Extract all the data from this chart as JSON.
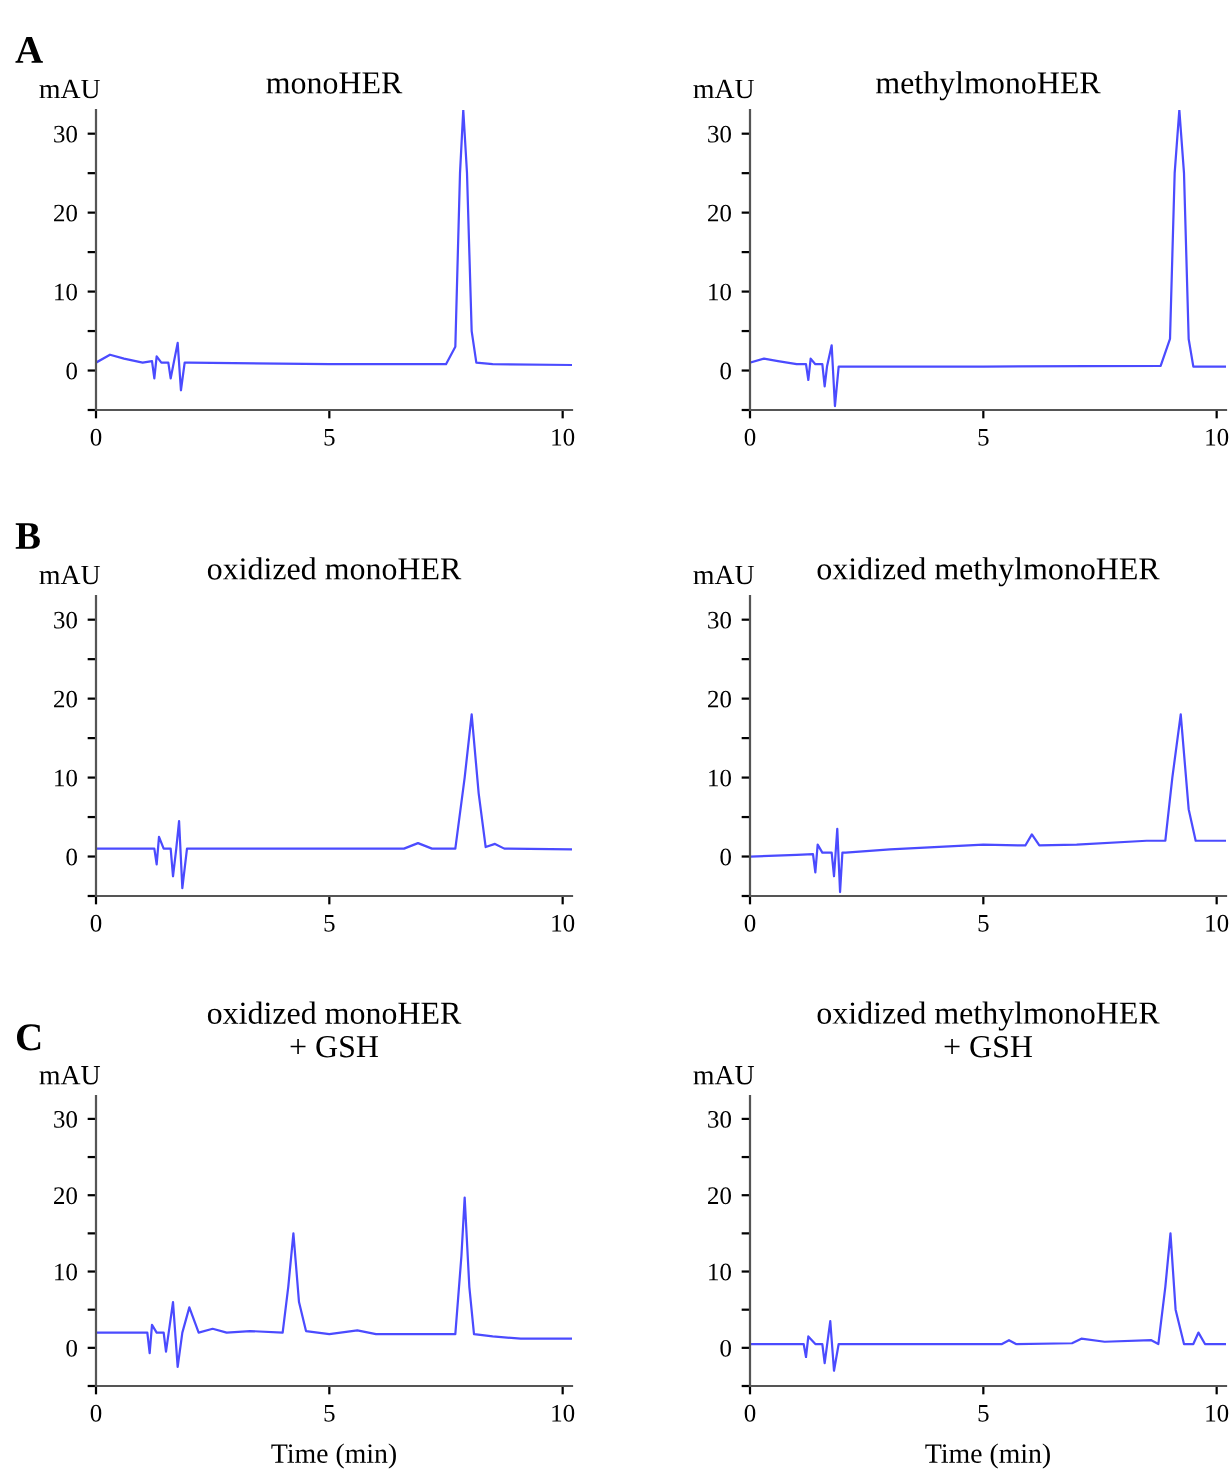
{
  "chart_data": [
    {
      "type": "line",
      "title": "monoHER",
      "ylabel": "mAU",
      "annotations": [
        "A"
      ],
      "xlim": [
        0,
        10.2
      ],
      "ylim": [
        -5,
        33
      ],
      "xticks": [
        0,
        5,
        10
      ],
      "yticks": [
        {
          "value": -5,
          "label": null
        },
        0,
        {
          "value": 5,
          "label": null
        },
        10,
        {
          "value": 15,
          "label": null
        },
        20,
        {
          "value": 25,
          "label": null
        },
        30
      ],
      "grid": false,
      "legend": false,
      "line_style": "solid",
      "marker": "none",
      "series": [
        {
          "color": "#4b4bff",
          "x": [
            0,
            0.3,
            0.6,
            1.0,
            1.2,
            1.25,
            1.3,
            1.4,
            1.55,
            1.6,
            1.65,
            1.75,
            1.82,
            1.9,
            2.0,
            5.0,
            7.5,
            7.7,
            7.8,
            7.87,
            7.95,
            8.05,
            8.15,
            8.5,
            10.2
          ],
          "values": [
            1.0,
            2.0,
            1.5,
            1.0,
            1.2,
            -1.0,
            1.8,
            1.0,
            1.0,
            -1.0,
            0.5,
            3.5,
            -2.5,
            1.0,
            1.0,
            0.8,
            0.8,
            3,
            25,
            33,
            25,
            5,
            1.0,
            0.8,
            0.7
          ]
        }
      ]
    },
    {
      "type": "line",
      "title": "methylmonoHER",
      "ylabel": "mAU",
      "xlim": [
        0,
        10.2
      ],
      "ylim": [
        -5,
        33
      ],
      "xticks": [
        0,
        5,
        10
      ],
      "yticks": [
        {
          "value": -5,
          "label": null
        },
        0,
        {
          "value": 5,
          "label": null
        },
        10,
        {
          "value": 15,
          "label": null
        },
        20,
        {
          "value": 25,
          "label": null
        },
        30
      ],
      "grid": false,
      "legend": false,
      "line_style": "solid",
      "marker": "none",
      "series": [
        {
          "color": "#4b4bff",
          "x": [
            0,
            0.3,
            0.6,
            1.0,
            1.2,
            1.25,
            1.3,
            1.4,
            1.55,
            1.6,
            1.65,
            1.75,
            1.82,
            1.9,
            2.0,
            5.0,
            8.8,
            9.0,
            9.1,
            9.2,
            9.3,
            9.4,
            9.5,
            10.2
          ],
          "values": [
            1.0,
            1.5,
            1.2,
            0.8,
            0.8,
            -1.2,
            1.5,
            0.8,
            0.8,
            -2.0,
            0.5,
            3.2,
            -4.5,
            0.5,
            0.5,
            0.5,
            0.6,
            4,
            25,
            33,
            25,
            4,
            0.5,
            0.5
          ]
        }
      ]
    },
    {
      "type": "line",
      "title": "oxidized monoHER",
      "ylabel": "mAU",
      "annotations": [
        "B"
      ],
      "xlim": [
        0,
        10.2
      ],
      "ylim": [
        -5,
        33
      ],
      "xticks": [
        0,
        5,
        10
      ],
      "yticks": [
        {
          "value": -5,
          "label": null
        },
        0,
        {
          "value": 5,
          "label": null
        },
        10,
        {
          "value": 15,
          "label": null
        },
        20,
        {
          "value": 25,
          "label": null
        },
        30
      ],
      "grid": false,
      "legend": false,
      "line_style": "solid",
      "marker": "none",
      "series": [
        {
          "color": "#4b4bff",
          "x": [
            0,
            1.25,
            1.3,
            1.35,
            1.45,
            1.6,
            1.65,
            1.72,
            1.78,
            1.85,
            1.95,
            5.0,
            6.6,
            6.9,
            7.2,
            7.7,
            7.9,
            8.05,
            8.2,
            8.35,
            8.55,
            8.75,
            10.2
          ],
          "values": [
            1.0,
            1.0,
            -1.0,
            2.5,
            1.0,
            1.0,
            -2.5,
            1.0,
            4.5,
            -4.0,
            1.0,
            1.0,
            1.0,
            1.7,
            1.0,
            1.0,
            10,
            18,
            8,
            1.2,
            1.6,
            1.0,
            0.9
          ]
        }
      ]
    },
    {
      "type": "line",
      "title": "oxidized methylmonoHER",
      "ylabel": "mAU",
      "xlim": [
        0,
        10.2
      ],
      "ylim": [
        -5,
        33
      ],
      "xticks": [
        0,
        5,
        10
      ],
      "yticks": [
        {
          "value": -5,
          "label": null
        },
        0,
        {
          "value": 5,
          "label": null
        },
        10,
        {
          "value": 15,
          "label": null
        },
        20,
        {
          "value": 25,
          "label": null
        },
        30
      ],
      "grid": false,
      "legend": false,
      "line_style": "solid",
      "marker": "none",
      "series": [
        {
          "color": "#4b4bff",
          "x": [
            0,
            1.0,
            1.35,
            1.4,
            1.45,
            1.55,
            1.75,
            1.8,
            1.87,
            1.93,
            1.98,
            2.05,
            3.0,
            5.0,
            5.9,
            6.04,
            6.2,
            7.0,
            8.5,
            8.9,
            9.05,
            9.23,
            9.4,
            9.55,
            10.2
          ],
          "values": [
            0,
            0.2,
            0.3,
            -2.0,
            1.5,
            0.5,
            0.5,
            -2.5,
            3.5,
            -4.5,
            0.5,
            0.5,
            0.9,
            1.5,
            1.4,
            2.8,
            1.4,
            1.5,
            2.0,
            2.0,
            10,
            18,
            6,
            2.0,
            2.0
          ]
        }
      ]
    },
    {
      "type": "line",
      "title": "oxidized monoHER\n+ GSH",
      "ylabel": "mAU",
      "xlabel": "Time (min)",
      "annotations": [
        "C"
      ],
      "xlim": [
        0,
        10.2
      ],
      "ylim": [
        -5,
        33
      ],
      "xticks": [
        0,
        5,
        10
      ],
      "yticks": [
        {
          "value": -5,
          "label": null
        },
        0,
        {
          "value": 5,
          "label": null
        },
        10,
        {
          "value": 15,
          "label": null
        },
        20,
        {
          "value": 25,
          "label": null
        },
        30
      ],
      "grid": false,
      "legend": false,
      "line_style": "solid",
      "marker": "none",
      "series": [
        {
          "color": "#4b4bff",
          "x": [
            0,
            1.1,
            1.15,
            1.2,
            1.3,
            1.45,
            1.5,
            1.65,
            1.75,
            1.85,
            2.0,
            2.2,
            2.5,
            2.8,
            3.3,
            4.0,
            4.12,
            4.23,
            4.35,
            4.5,
            5.0,
            5.6,
            6.0,
            7.7,
            7.83,
            7.9,
            8.0,
            8.1,
            8.5,
            9.1,
            10.2
          ],
          "values": [
            2.0,
            2.0,
            -0.7,
            3.0,
            2.0,
            2.0,
            -0.5,
            6.0,
            -2.5,
            2.0,
            5.3,
            2.0,
            2.5,
            2.0,
            2.2,
            2.0,
            8,
            15,
            6,
            2.2,
            1.8,
            2.3,
            1.8,
            1.8,
            12,
            19.7,
            8,
            1.8,
            1.5,
            1.2,
            1.2
          ]
        }
      ]
    },
    {
      "type": "line",
      "title": "oxidized methylmonoHER\n+ GSH",
      "ylabel": "mAU",
      "xlabel": "Time (min)",
      "xlim": [
        0,
        10.2
      ],
      "ylim": [
        -5,
        33
      ],
      "xticks": [
        0,
        5,
        10
      ],
      "yticks": [
        {
          "value": -5,
          "label": null
        },
        0,
        {
          "value": 5,
          "label": null
        },
        10,
        {
          "value": 15,
          "label": null
        },
        20,
        {
          "value": 25,
          "label": null
        },
        30
      ],
      "grid": false,
      "legend": false,
      "line_style": "solid",
      "marker": "none",
      "series": [
        {
          "color": "#4b4bff",
          "x": [
            0,
            1.15,
            1.2,
            1.25,
            1.4,
            1.55,
            1.6,
            1.72,
            1.8,
            1.9,
            3.0,
            5.4,
            5.55,
            5.7,
            6.9,
            7.1,
            7.6,
            8.6,
            8.75,
            8.9,
            9.01,
            9.12,
            9.3,
            9.5,
            9.61,
            9.75,
            10.2
          ],
          "values": [
            0.5,
            0.5,
            -1.2,
            1.5,
            0.5,
            0.5,
            -2.0,
            3.5,
            -3.0,
            0.5,
            0.5,
            0.5,
            1.0,
            0.5,
            0.6,
            1.2,
            0.8,
            1.0,
            0.5,
            8,
            15,
            5,
            0.5,
            0.5,
            2.0,
            0.5,
            0.5
          ]
        }
      ]
    }
  ]
}
